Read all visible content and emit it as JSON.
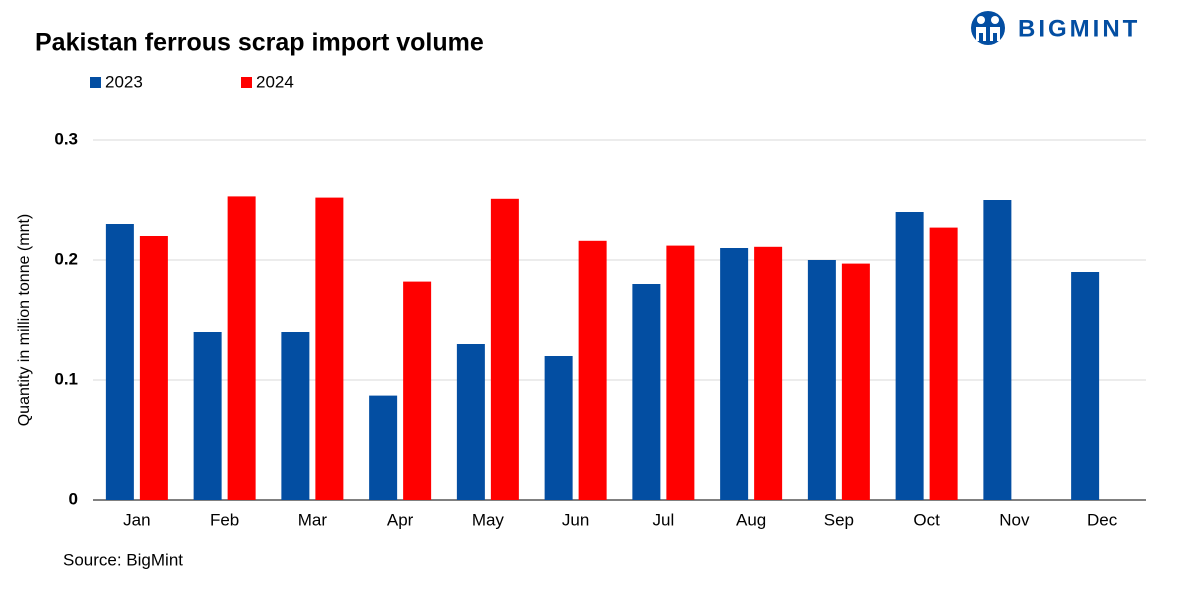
{
  "logo": "BIGMINT",
  "chart_data": {
    "type": "bar",
    "title": "Pakistan ferrous scrap import volume",
    "y_label": "Quantity in million tonne (mnt)",
    "source": "Source: BigMint",
    "categories": [
      "Jan",
      "Feb",
      "Mar",
      "Apr",
      "May",
      "Jun",
      "Jul",
      "Aug",
      "Sep",
      "Oct",
      "Nov",
      "Dec"
    ],
    "series": [
      {
        "name": "2023",
        "color": "#034ea2",
        "values": [
          0.23,
          0.14,
          0.14,
          0.087,
          0.13,
          0.12,
          0.18,
          0.21,
          0.2,
          0.24,
          0.25,
          0.19
        ]
      },
      {
        "name": "2024",
        "color": "#ff0000",
        "values": [
          0.22,
          0.253,
          0.252,
          0.182,
          0.251,
          0.216,
          0.212,
          0.211,
          0.197,
          0.227,
          null,
          null
        ]
      }
    ],
    "ylim": [
      0,
      0.3
    ],
    "yticks": [
      0,
      0.1,
      0.2,
      0.3
    ],
    "grid": true,
    "legend": "top-left"
  }
}
